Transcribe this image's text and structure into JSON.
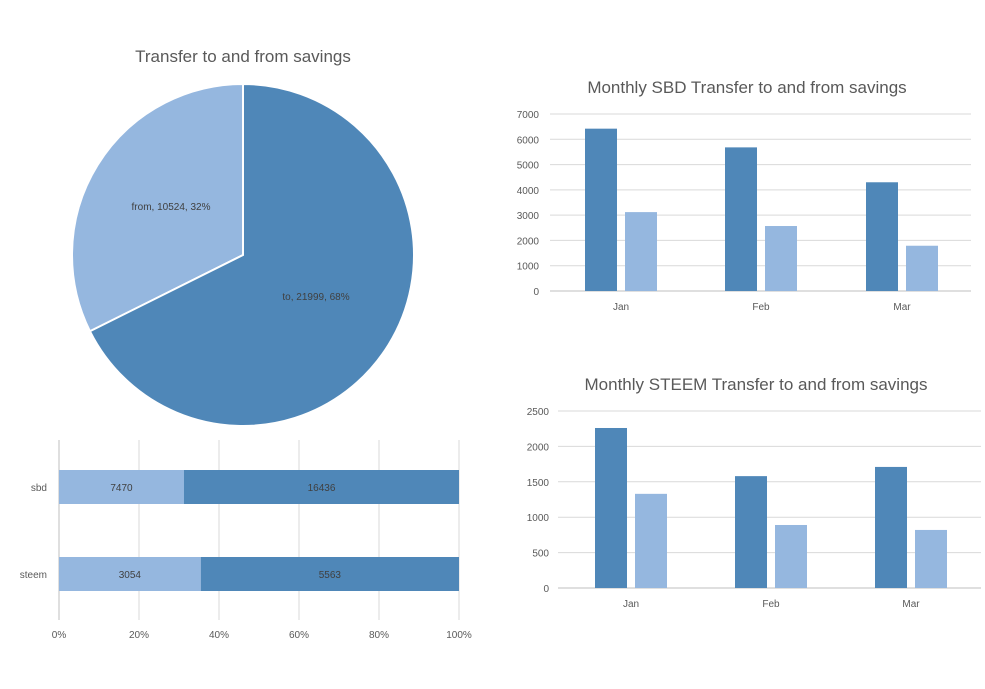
{
  "colors": {
    "series_dark": "#4f87b8",
    "series_light": "#95b7df",
    "grid": "#d9d9d9",
    "text": "#595959"
  },
  "chart_data": [
    {
      "id": "pie",
      "type": "pie",
      "title": "Transfer to and from savings",
      "slices": [
        {
          "label": "from",
          "value": 10524,
          "percent_label": "32%",
          "color": "#95b7df"
        },
        {
          "label": "to",
          "value": 21999,
          "percent_label": "68%",
          "color": "#4f87b8"
        }
      ]
    },
    {
      "id": "stacked",
      "type": "bar",
      "orientation": "horizontal",
      "stacking": "percent",
      "title": "",
      "categories": [
        "sbd",
        "steem"
      ],
      "series": [
        {
          "values": [
            7470,
            3054
          ],
          "color": "#95b7df"
        },
        {
          "values": [
            16436,
            5563
          ],
          "color": "#4f87b8"
        }
      ],
      "xticks": [
        "0%",
        "20%",
        "40%",
        "60%",
        "80%",
        "100%"
      ],
      "grid": true
    },
    {
      "id": "sbd",
      "type": "bar",
      "title": "Monthly SBD Transfer to and from savings",
      "categories": [
        "Jan",
        "Feb",
        "Mar"
      ],
      "series": [
        {
          "values": [
            6420,
            5680,
            4300
          ],
          "color": "#4f87b8"
        },
        {
          "values": [
            3120,
            2570,
            1790
          ],
          "color": "#95b7df"
        }
      ],
      "ylim": [
        0,
        7000
      ],
      "yticks": [
        "0",
        "1000",
        "2000",
        "3000",
        "4000",
        "5000",
        "6000",
        "7000"
      ],
      "grid": true
    },
    {
      "id": "steem",
      "type": "bar",
      "title": "Monthly STEEM Transfer to and from savings",
      "categories": [
        "Jan",
        "Feb",
        "Mar"
      ],
      "series": [
        {
          "values": [
            2260,
            1580,
            1710
          ],
          "color": "#4f87b8"
        },
        {
          "values": [
            1330,
            890,
            820
          ],
          "color": "#95b7df"
        }
      ],
      "ylim": [
        0,
        2500
      ],
      "yticks": [
        "0",
        "500",
        "1000",
        "1500",
        "2000",
        "2500"
      ],
      "grid": true
    }
  ]
}
